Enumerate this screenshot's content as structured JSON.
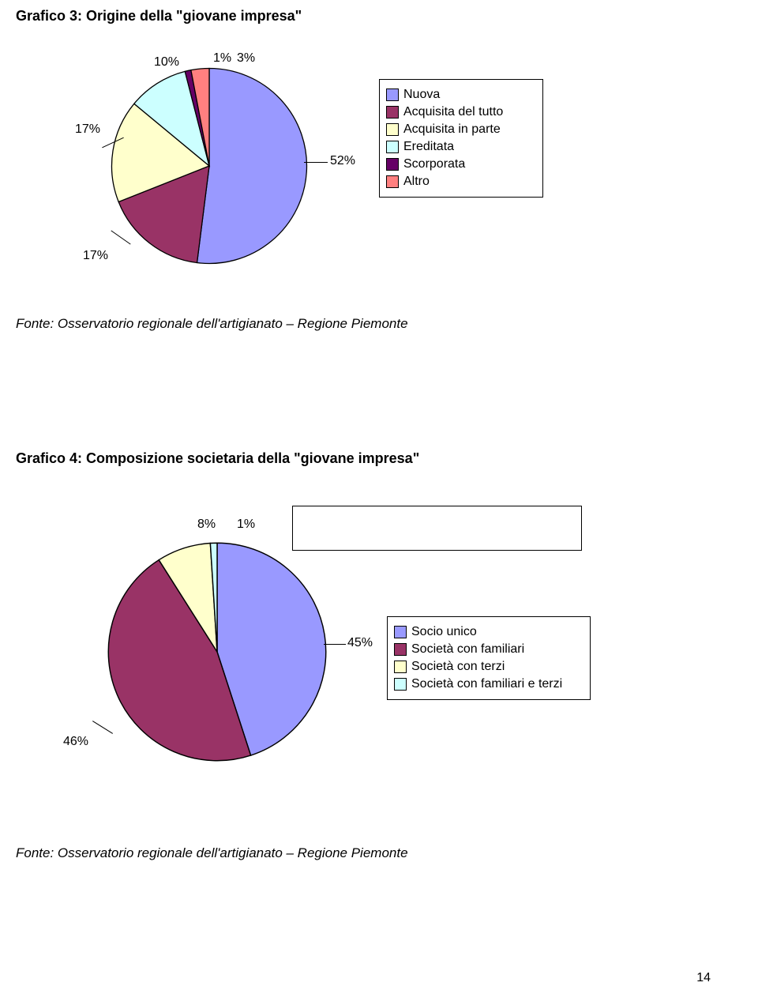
{
  "chart1": {
    "title": "Grafico 3: Origine della \"giovane impresa\"",
    "title_fontsize": 18,
    "type": "pie",
    "slices": [
      {
        "label": "Nuova",
        "percent": 52,
        "color": "#9999ff",
        "pct_label": "52%"
      },
      {
        "label": "Acquisita del tutto",
        "percent": 17,
        "color": "#993366",
        "pct_label": "17%"
      },
      {
        "label": "Acquisita in parte",
        "percent": 17,
        "color": "#ffffcc",
        "pct_label": "17%"
      },
      {
        "label": "Ereditata",
        "percent": 10,
        "color": "#ccffff",
        "pct_label": "10%"
      },
      {
        "label": "Scorporata",
        "percent": 1,
        "color": "#660066",
        "pct_label": "1%"
      },
      {
        "label": "Altro",
        "percent": 3,
        "color": "#ff8080",
        "pct_label": "3%"
      }
    ],
    "border_color": "#000000",
    "background_color": "#ffffff",
    "source": "Fonte: Osservatorio regionale dell'artigianato – Regione Piemonte",
    "source_fontsize": 17
  },
  "chart2": {
    "title": "Grafico 4: Composizione societaria della \"giovane impresa\"",
    "title_fontsize": 18,
    "type": "pie",
    "slices": [
      {
        "label": "Socio unico",
        "percent": 45,
        "color": "#9999ff",
        "pct_label": "45%"
      },
      {
        "label": "Società con familiari",
        "percent": 46,
        "color": "#993366",
        "pct_label": "46%"
      },
      {
        "label": "Società con terzi",
        "percent": 8,
        "color": "#ffffcc",
        "pct_label": "8%"
      },
      {
        "label": "Società con familiari e terzi",
        "percent": 1,
        "color": "#ccffff",
        "pct_label": "1%"
      }
    ],
    "border_color": "#000000",
    "background_color": "#ffffff",
    "source": "Fonte: Osservatorio regionale dell'artigianato – Regione Piemonte",
    "source_fontsize": 17
  },
  "page_number": "14"
}
